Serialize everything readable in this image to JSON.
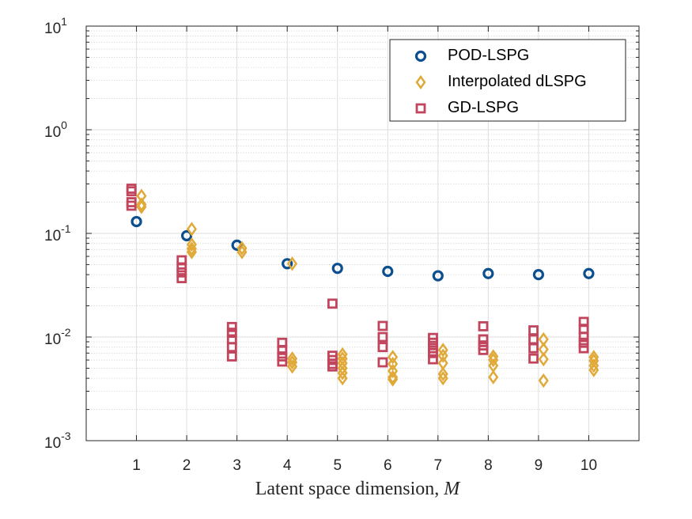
{
  "chart_data": {
    "type": "scatter",
    "title": "",
    "xlabel": "Latent space dimension,",
    "xlabel_var": "M",
    "ylabel": "",
    "yscale": "log",
    "ylim_exp": [
      -3,
      1
    ],
    "xlim": [
      0,
      11
    ],
    "grid": true,
    "minor_grid": true,
    "legend_position": "top-right",
    "x_ticks": [
      "1",
      "2",
      "3",
      "4",
      "5",
      "6",
      "7",
      "8",
      "9",
      "10"
    ],
    "y_ticks": [
      {
        "base": "10",
        "exp": "-3",
        "e": -3
      },
      {
        "base": "10",
        "exp": "-2",
        "e": -2
      },
      {
        "base": "10",
        "exp": "-1",
        "e": -1
      },
      {
        "base": "10",
        "exp": "0",
        "e": 0
      },
      {
        "base": "10",
        "exp": "1",
        "e": 1
      }
    ],
    "series": [
      {
        "name": "POD-LSPG",
        "marker": "circle",
        "color": "#0b4f8f",
        "offset": 0,
        "points": [
          {
            "x": 1,
            "ys": [
              0.13
            ]
          },
          {
            "x": 2,
            "ys": [
              0.095
            ]
          },
          {
            "x": 3,
            "ys": [
              0.077
            ]
          },
          {
            "x": 4,
            "ys": [
              0.051
            ]
          },
          {
            "x": 5,
            "ys": [
              0.046
            ]
          },
          {
            "x": 6,
            "ys": [
              0.043
            ]
          },
          {
            "x": 7,
            "ys": [
              0.039
            ]
          },
          {
            "x": 8,
            "ys": [
              0.041
            ]
          },
          {
            "x": 9,
            "ys": [
              0.04
            ]
          },
          {
            "x": 10,
            "ys": [
              0.041
            ]
          }
        ]
      },
      {
        "name": "Interpolated dLSPG",
        "marker": "diamond",
        "color": "#e0a938",
        "offset": 0.1,
        "points": [
          {
            "x": 1,
            "ys": [
              0.23,
              0.19,
              0.18
            ]
          },
          {
            "x": 2,
            "ys": [
              0.11,
              0.078,
              0.071,
              0.066
            ]
          },
          {
            "x": 3,
            "ys": [
              0.072,
              0.066
            ]
          },
          {
            "x": 4,
            "ys": [
              0.051,
              0.0062,
              0.0057,
              0.0052
            ]
          },
          {
            "x": 5,
            "ys": [
              0.0068,
              0.0062,
              0.0056,
              0.005,
              0.0045,
              0.004
            ]
          },
          {
            "x": 6,
            "ys": [
              0.0064,
              0.0055,
              0.0047,
              0.0041,
              0.0039
            ]
          },
          {
            "x": 7,
            "ys": [
              0.0075,
              0.0066,
              0.0056,
              0.0044,
              0.004
            ]
          },
          {
            "x": 8,
            "ys": [
              0.0065,
              0.006,
              0.0053,
              0.0041
            ]
          },
          {
            "x": 9,
            "ys": [
              0.0095,
              0.0076,
              0.0061,
              0.0038
            ]
          },
          {
            "x": 10,
            "ys": [
              0.0064,
              0.0059,
              0.0053,
              0.0048
            ]
          }
        ]
      },
      {
        "name": "GD-LSPG",
        "marker": "square",
        "color": "#c0455d",
        "offset": -0.1,
        "points": [
          {
            "x": 1,
            "ys": [
              0.27,
              0.255,
              0.2,
              0.185
            ]
          },
          {
            "x": 2,
            "ys": [
              0.055,
              0.047,
              0.042,
              0.037
            ]
          },
          {
            "x": 3,
            "ys": [
              0.0125,
              0.011,
              0.0095,
              0.008,
              0.0065
            ]
          },
          {
            "x": 4,
            "ys": [
              0.0088,
              0.0075,
              0.0065,
              0.0058
            ]
          },
          {
            "x": 5,
            "ys": [
              0.021,
              0.0066,
              0.006,
              0.0055,
              0.0052
            ]
          },
          {
            "x": 6,
            "ys": [
              0.0128,
              0.01,
              0.008,
              0.0057
            ]
          },
          {
            "x": 7,
            "ys": [
              0.0098,
              0.0088,
              0.0078,
              0.007,
              0.0061
            ]
          },
          {
            "x": 8,
            "ys": [
              0.0127,
              0.0095,
              0.0083,
              0.0075
            ]
          },
          {
            "x": 9,
            "ys": [
              0.0116,
              0.0095,
              0.0078,
              0.0062
            ]
          },
          {
            "x": 10,
            "ys": [
              0.014,
              0.012,
              0.01,
              0.0088,
              0.0078
            ]
          }
        ]
      }
    ]
  }
}
